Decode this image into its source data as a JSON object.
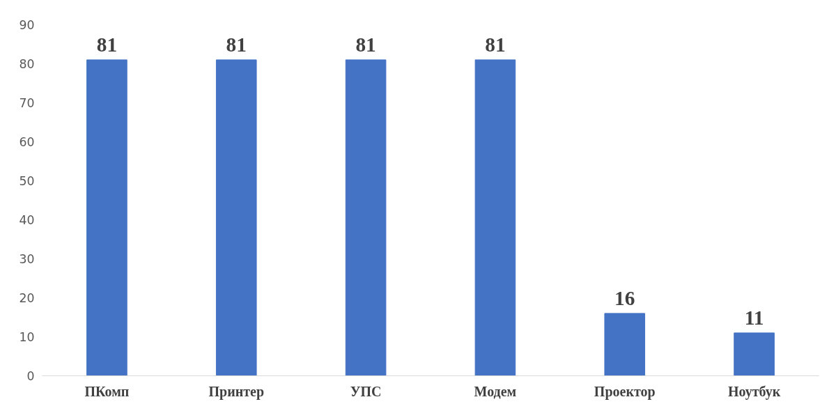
{
  "chart_data": {
    "type": "bar",
    "categories": [
      "ПКомп",
      "Принтер",
      "УПС",
      "Модем",
      "Проектор",
      "Ноутбук"
    ],
    "values": [
      81,
      81,
      81,
      81,
      16,
      11
    ],
    "color": "#4472c4",
    "ylim": [
      0,
      90
    ],
    "yticks": [
      0,
      10,
      20,
      30,
      40,
      50,
      60,
      70,
      80,
      90
    ],
    "grid": false,
    "data_labels": true
  }
}
